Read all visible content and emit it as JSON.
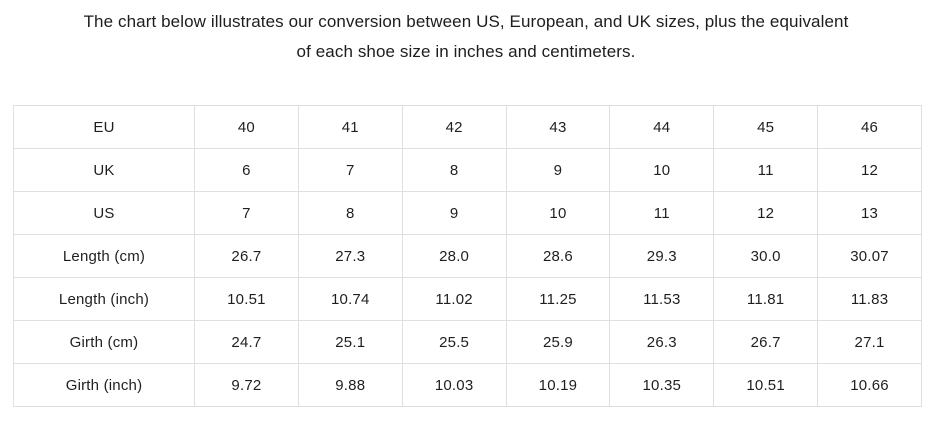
{
  "title": {
    "lines": [
      "The chart below illustrates our conversion between US, European, and UK sizes, plus the equivalent",
      "of each shoe size in inches and centimeters."
    ]
  },
  "colors": {
    "background": "#ffffff",
    "table_border": "#dfdfdf",
    "text": "#1f1f1f"
  },
  "table": {
    "rows": [
      {
        "label": "EU",
        "values": [
          "40",
          "41",
          "42",
          "43",
          "44",
          "45",
          "46"
        ]
      },
      {
        "label": "UK",
        "values": [
          "6",
          "7",
          "8",
          "9",
          "10",
          "11",
          "12"
        ]
      },
      {
        "label": "US",
        "values": [
          "7",
          "8",
          "9",
          "10",
          "11",
          "12",
          "13"
        ]
      },
      {
        "label": "Length (cm)",
        "values": [
          "26.7",
          "27.3",
          "28.0",
          "28.6",
          "29.3",
          "30.0",
          "30.07"
        ]
      },
      {
        "label": "Length (inch)",
        "values": [
          "10.51",
          "10.74",
          "11.02",
          "11.25",
          "11.53",
          "11.81",
          "11.83"
        ]
      },
      {
        "label": "Girth (cm)",
        "values": [
          "24.7",
          "25.1",
          "25.5",
          "25.9",
          "26.3",
          "26.7",
          "27.1"
        ]
      },
      {
        "label": "Girth (inch)",
        "values": [
          "9.72",
          "9.88",
          "10.03",
          "10.19",
          "10.35",
          "10.51",
          "10.66"
        ]
      }
    ]
  }
}
